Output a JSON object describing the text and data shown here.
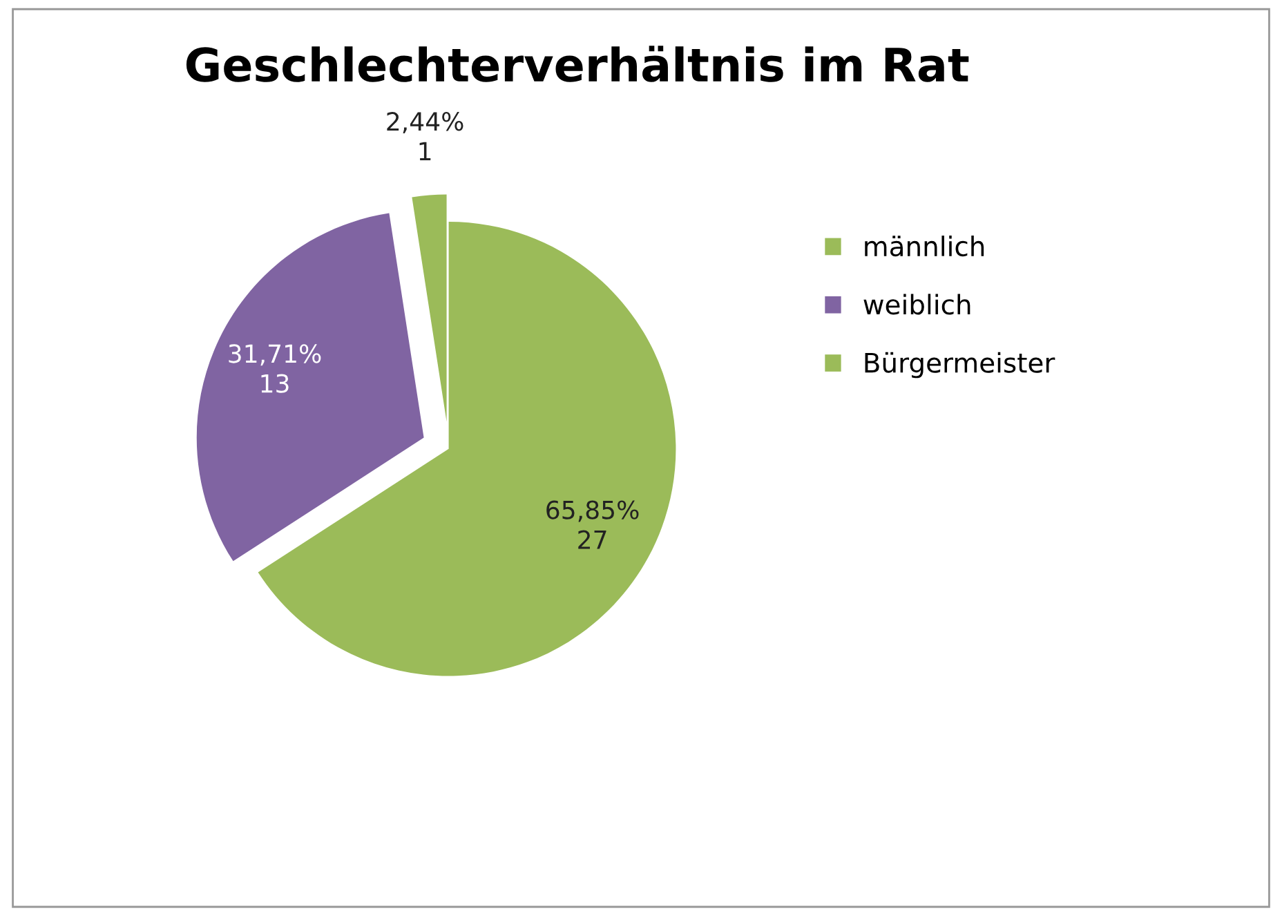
{
  "chart_data": {
    "type": "pie",
    "title": "Geschlechterverhältnis im Rat",
    "categories": [
      "männlich",
      "weiblich",
      "Bürgermeister"
    ],
    "values": [
      27,
      13,
      1
    ],
    "value_labels": [
      "65,85%\n27",
      "31,71%\n13",
      "2,44%\n1"
    ],
    "colors": [
      "#9bbb59",
      "#8064a2",
      "#9bbb59"
    ],
    "legend": "right"
  }
}
